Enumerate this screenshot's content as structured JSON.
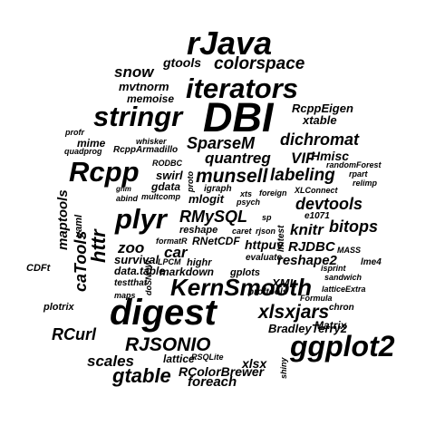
{
  "words": [
    "rJava",
    "gtools",
    "colorspace",
    "snow",
    "mvtnorm",
    "iterators",
    "memoise",
    "stringr",
    "DBI",
    "RcppEigen",
    "xtable",
    "dichromat",
    "whisker",
    "mime",
    "profr",
    "quadprog",
    "RcppArmadillo",
    "SparseM",
    "Hmisc",
    "VIF",
    "quantreg",
    "Rcpp",
    "RODBC",
    "randomForest",
    "rpart",
    "swirl",
    "munsell",
    "labeling",
    "gdata",
    "igraph",
    "XLConnect",
    "foreign",
    "relimp",
    "gnm",
    "abind",
    "multcomp",
    "xts",
    "psych",
    "mlogit",
    "devtools",
    "plyr",
    "RMySQL",
    "e1071",
    "sp",
    "knitr",
    "bitops",
    "reshape",
    "caret",
    "rjson",
    "RNetCDF",
    "formatR",
    "httpuv",
    "zoo",
    "car",
    "RJDBC",
    "MASS",
    "survival",
    "LPCM",
    "highr",
    "reshape2",
    "isprint",
    "lme4",
    "CDFt",
    "data.table",
    "markdown",
    "gplots",
    "sandwich",
    "testthat",
    "XML",
    "latticeExtra",
    "KernSmooth",
    "proftools",
    "maps",
    "Formula",
    "plotrix",
    "digest",
    "xlsxjars",
    "chron",
    "BradleyTerry2",
    "Matrix",
    "RCurl",
    "RJSONIO",
    "ggplot2",
    "scales",
    "RSQLite",
    "lattice",
    "xlsx",
    "gtable",
    "RColorBrewer",
    "foreach",
    "evaluate",
    "maptools",
    "yaml",
    "httr",
    "proto",
    "caTools",
    "doSNOW",
    "lmtest",
    "shiny"
  ]
}
